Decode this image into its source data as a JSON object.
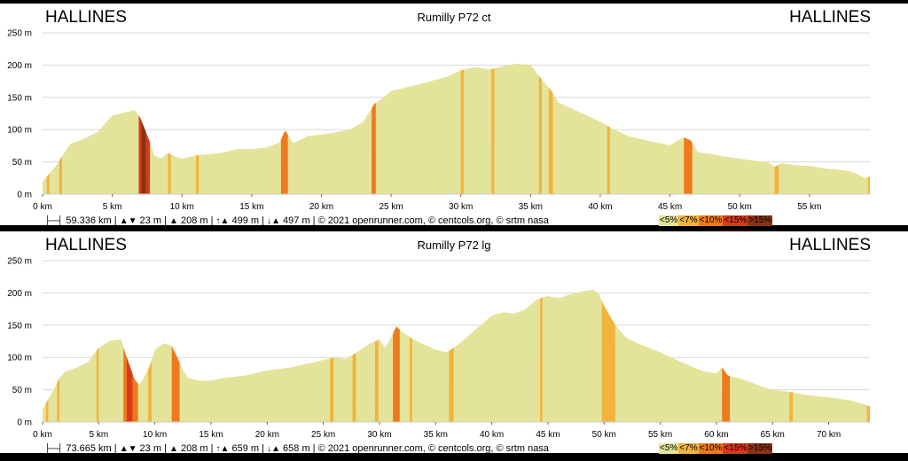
{
  "chart_data": [
    {
      "type": "area",
      "start_name": "HALLINES",
      "end_name": "HALLINES",
      "title": "Rumilly P72 ct",
      "x_unit": "km",
      "xlim": [
        0,
        59.336
      ],
      "x_ticks": [
        "0 km",
        "5 km",
        "10 km",
        "15 km",
        "20 km",
        "25 km",
        "30 km",
        "35 km",
        "40 km",
        "45 km",
        "50 km",
        "55 km"
      ],
      "ylim": [
        0,
        250
      ],
      "y_ticks": [
        "0 m",
        "50 m",
        "100 m",
        "150 m",
        "200 m",
        "250 m"
      ],
      "grid": true,
      "profile": [
        [
          0,
          20
        ],
        [
          0.5,
          32
        ],
        [
          1,
          45
        ],
        [
          1.5,
          62
        ],
        [
          2,
          78
        ],
        [
          3,
          86
        ],
        [
          4,
          97
        ],
        [
          4.5,
          110
        ],
        [
          5,
          122
        ],
        [
          6,
          127
        ],
        [
          6.6,
          130
        ],
        [
          7,
          119
        ],
        [
          7.4,
          97
        ],
        [
          7.8,
          75
        ],
        [
          8,
          60
        ],
        [
          8.5,
          55
        ],
        [
          9,
          64
        ],
        [
          9.5,
          58
        ],
        [
          10,
          55
        ],
        [
          11,
          60
        ],
        [
          12,
          62
        ],
        [
          13,
          65
        ],
        [
          14,
          70
        ],
        [
          15,
          70
        ],
        [
          16,
          72
        ],
        [
          17,
          80
        ],
        [
          17.4,
          99
        ],
        [
          17.8,
          85
        ],
        [
          18,
          79
        ],
        [
          19,
          90
        ],
        [
          20,
          92
        ],
        [
          21,
          96
        ],
        [
          22,
          100
        ],
        [
          23,
          112
        ],
        [
          23.8,
          140
        ],
        [
          24.5,
          150
        ],
        [
          25,
          160
        ],
        [
          26,
          165
        ],
        [
          27,
          170
        ],
        [
          28,
          176
        ],
        [
          29,
          182
        ],
        [
          30,
          192
        ],
        [
          31,
          197
        ],
        [
          32,
          193
        ],
        [
          33,
          198
        ],
        [
          34,
          202
        ],
        [
          35,
          200
        ],
        [
          35.8,
          178
        ],
        [
          36.5,
          160
        ],
        [
          37,
          142
        ],
        [
          38,
          132
        ],
        [
          39,
          122
        ],
        [
          40,
          112
        ],
        [
          41,
          100
        ],
        [
          42,
          90
        ],
        [
          43,
          85
        ],
        [
          44,
          80
        ],
        [
          45,
          76
        ],
        [
          46,
          88
        ],
        [
          46.5,
          83
        ],
        [
          47,
          65
        ],
        [
          48,
          62
        ],
        [
          49,
          58
        ],
        [
          50,
          55
        ],
        [
          51,
          52
        ],
        [
          52,
          50
        ],
        [
          52.5,
          42
        ],
        [
          53,
          48
        ],
        [
          54,
          45
        ],
        [
          55,
          44
        ],
        [
          56,
          40
        ],
        [
          57,
          38
        ],
        [
          58,
          35
        ],
        [
          59,
          25
        ],
        [
          59.336,
          27
        ]
      ],
      "steep_segments": [
        {
          "from": 6.9,
          "to": 7.7,
          "class": "<15%"
        },
        {
          "from": 7.1,
          "to": 7.4,
          "class": ">15%"
        },
        {
          "from": 0.3,
          "to": 0.5,
          "class": "<7%"
        },
        {
          "from": 1.2,
          "to": 1.4,
          "class": "<7%"
        },
        {
          "from": 9,
          "to": 9.2,
          "class": "<7%"
        },
        {
          "from": 11,
          "to": 11.2,
          "class": "<7%"
        },
        {
          "from": 17.1,
          "to": 17.6,
          "class": "<10%"
        },
        {
          "from": 23.6,
          "to": 23.9,
          "class": "<10%"
        },
        {
          "from": 30,
          "to": 30.2,
          "class": "<7%"
        },
        {
          "from": 32.2,
          "to": 32.4,
          "class": "<7%"
        },
        {
          "from": 35.6,
          "to": 35.8,
          "class": "<7%"
        },
        {
          "from": 36.3,
          "to": 36.6,
          "class": "<7%"
        },
        {
          "from": 40.5,
          "to": 40.7,
          "class": "<7%"
        },
        {
          "from": 46,
          "to": 46.6,
          "class": "<10%"
        },
        {
          "from": 52.5,
          "to": 52.8,
          "class": "<7%"
        },
        {
          "from": 59.2,
          "to": 59.336,
          "class": "<7%"
        }
      ]
    },
    {
      "type": "area",
      "start_name": "HALLINES",
      "end_name": "HALLINES",
      "title": "Rumilly P72 lg",
      "x_unit": "km",
      "xlim": [
        0,
        73.665
      ],
      "x_ticks": [
        "0 km",
        "5 km",
        "10 km",
        "15 km",
        "20 km",
        "25 km",
        "30 km",
        "35 km",
        "40 km",
        "45 km",
        "50 km",
        "55 km",
        "60 km",
        "65 km",
        "70 km"
      ],
      "ylim": [
        0,
        250
      ],
      "y_ticks": [
        "0 m",
        "50 m",
        "100 m",
        "150 m",
        "200 m",
        "250 m"
      ],
      "grid": true,
      "profile": [
        [
          0,
          20
        ],
        [
          0.5,
          35
        ],
        [
          1,
          50
        ],
        [
          1.5,
          68
        ],
        [
          2,
          78
        ],
        [
          3,
          84
        ],
        [
          4,
          92
        ],
        [
          5,
          115
        ],
        [
          6,
          126
        ],
        [
          7,
          128
        ],
        [
          7.3,
          110
        ],
        [
          7.8,
          85
        ],
        [
          8.2,
          65
        ],
        [
          8.6,
          58
        ],
        [
          9,
          68
        ],
        [
          9.5,
          85
        ],
        [
          10,
          112
        ],
        [
          10.8,
          122
        ],
        [
          11.5,
          118
        ],
        [
          12,
          100
        ],
        [
          12.5,
          80
        ],
        [
          13,
          68
        ],
        [
          14,
          64
        ],
        [
          15,
          64
        ],
        [
          16,
          68
        ],
        [
          17,
          70
        ],
        [
          18,
          72
        ],
        [
          19,
          76
        ],
        [
          20,
          80
        ],
        [
          21,
          82
        ],
        [
          22,
          84
        ],
        [
          23,
          88
        ],
        [
          24,
          92
        ],
        [
          25,
          96
        ],
        [
          26,
          100
        ],
        [
          27,
          98
        ],
        [
          28,
          108
        ],
        [
          29,
          120
        ],
        [
          30,
          128
        ],
        [
          30.5,
          115
        ],
        [
          31,
          130
        ],
        [
          31.5,
          148
        ],
        [
          32,
          140
        ],
        [
          33,
          128
        ],
        [
          34,
          120
        ],
        [
          35,
          112
        ],
        [
          36,
          108
        ],
        [
          37,
          120
        ],
        [
          38,
          135
        ],
        [
          39,
          150
        ],
        [
          40,
          165
        ],
        [
          41,
          170
        ],
        [
          42,
          168
        ],
        [
          43,
          175
        ],
        [
          44,
          190
        ],
        [
          45,
          195
        ],
        [
          46,
          192
        ],
        [
          47,
          198
        ],
        [
          48,
          202
        ],
        [
          49,
          205
        ],
        [
          49.5,
          200
        ],
        [
          50,
          180
        ],
        [
          51,
          150
        ],
        [
          52,
          130
        ],
        [
          53,
          122
        ],
        [
          54,
          115
        ],
        [
          55,
          108
        ],
        [
          56,
          100
        ],
        [
          57,
          92
        ],
        [
          58,
          84
        ],
        [
          59,
          78
        ],
        [
          60,
          75
        ],
        [
          60.5,
          85
        ],
        [
          61,
          72
        ],
        [
          62,
          68
        ],
        [
          63,
          62
        ],
        [
          64,
          55
        ],
        [
          65,
          50
        ],
        [
          66,
          48
        ],
        [
          67,
          45
        ],
        [
          68,
          42
        ],
        [
          69,
          40
        ],
        [
          70,
          38
        ],
        [
          71,
          36
        ],
        [
          72,
          33
        ],
        [
          73,
          28
        ],
        [
          73.665,
          24
        ]
      ],
      "steep_segments": [
        {
          "from": 7.2,
          "to": 8.5,
          "class": "<10%"
        },
        {
          "from": 7.5,
          "to": 8.0,
          "class": "<15%"
        },
        {
          "from": 11.5,
          "to": 12.2,
          "class": "<10%"
        },
        {
          "from": 0.3,
          "to": 0.5,
          "class": "<7%"
        },
        {
          "from": 1.3,
          "to": 1.5,
          "class": "<7%"
        },
        {
          "from": 4.8,
          "to": 5.0,
          "class": "<7%"
        },
        {
          "from": 9.4,
          "to": 9.7,
          "class": "<7%"
        },
        {
          "from": 25.6,
          "to": 25.9,
          "class": "<7%"
        },
        {
          "from": 27.6,
          "to": 27.9,
          "class": "<7%"
        },
        {
          "from": 29.6,
          "to": 29.9,
          "class": "<7%"
        },
        {
          "from": 31.2,
          "to": 31.8,
          "class": "<10%"
        },
        {
          "from": 32.7,
          "to": 32.9,
          "class": "<7%"
        },
        {
          "from": 36.2,
          "to": 36.6,
          "class": "<7%"
        },
        {
          "from": 44.3,
          "to": 44.5,
          "class": "<7%"
        },
        {
          "from": 49.8,
          "to": 51,
          "class": "<7%"
        },
        {
          "from": 60.5,
          "to": 61.2,
          "class": "<10%"
        },
        {
          "from": 66.5,
          "to": 66.8,
          "class": "<7%"
        },
        {
          "from": 73.4,
          "to": 73.665,
          "class": "<7%"
        }
      ]
    }
  ],
  "panels": [
    {
      "distance": "59.336 km",
      "min_alt": "23 m",
      "max_alt": "208 m",
      "ascent": "499 m",
      "descent": "497 m",
      "credits": "© 2021 openrunner.com, © centcols.org, © srtm nasa"
    },
    {
      "distance": "73.665 km",
      "min_alt": "23 m",
      "max_alt": "208 m",
      "ascent": "659 m",
      "descent": "658 m",
      "credits": "© 2021 openrunner.com, © centcols.org, © srtm nasa"
    }
  ],
  "legend": [
    {
      "label": "<5%",
      "color": "#e4e39a"
    },
    {
      "label": "<7%",
      "color": "#f2b43c"
    },
    {
      "label": "<10%",
      "color": "#ee7a1e"
    },
    {
      "label": "<15%",
      "color": "#d93a1c"
    },
    {
      "label": ">15%",
      "color": "#8a3316"
    }
  ],
  "colors": {
    "area_fill": "#e4e39a",
    "grid": "#d8d8d8",
    "panel_bg": "#ffffff",
    "frame_bg": "#000000"
  }
}
